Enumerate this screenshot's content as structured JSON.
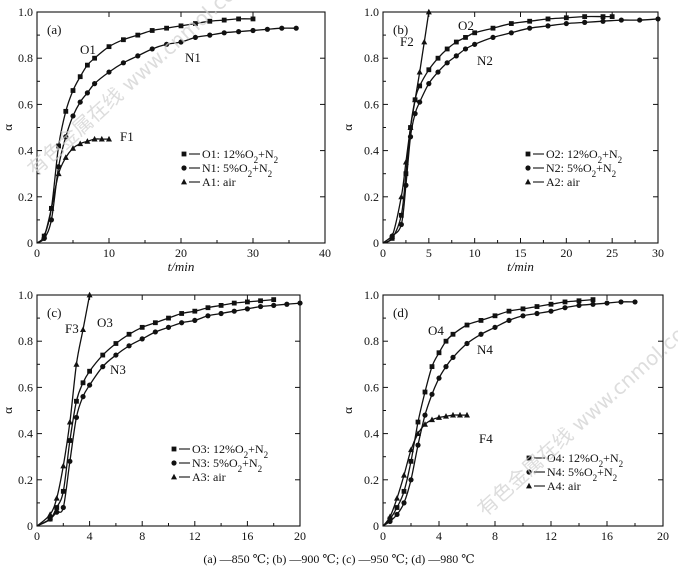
{
  "caption": "(a) —850 ℃; (b) —900 ℃; (c) —950 ℃; (d) —980 ℃",
  "watermark": "有色金属在线 www.cnmol.com",
  "chart_data": [
    {
      "type": "line",
      "panel_label": "(a)",
      "xlabel": "t/min",
      "ylabel": "α",
      "xlim": [
        0,
        40
      ],
      "ylim": [
        0,
        1.0
      ],
      "xticks": [
        0,
        10,
        20,
        30,
        40
      ],
      "yticks": [
        0,
        0.2,
        0.4,
        0.6,
        0.8,
        1.0
      ],
      "series": [
        {
          "name": "O1: 12%O2+N2",
          "legend_key": "O1",
          "tag": "O1",
          "marker": "square",
          "x": [
            0,
            1,
            2,
            3,
            4,
            5,
            6,
            7,
            8,
            10,
            12,
            14,
            16,
            18,
            20,
            22,
            24,
            26,
            28,
            30
          ],
          "y": [
            0,
            0.03,
            0.15,
            0.42,
            0.57,
            0.66,
            0.72,
            0.77,
            0.8,
            0.85,
            0.88,
            0.9,
            0.92,
            0.93,
            0.94,
            0.95,
            0.96,
            0.965,
            0.97,
            0.97
          ]
        },
        {
          "name": "N1: 5%O2+N2",
          "legend_key": "N1",
          "tag": "N1",
          "marker": "circle",
          "x": [
            0,
            1,
            2,
            3,
            4,
            5,
            6,
            7,
            8,
            10,
            12,
            14,
            16,
            18,
            20,
            22,
            24,
            26,
            28,
            30,
            32,
            34,
            36
          ],
          "y": [
            0,
            0.02,
            0.1,
            0.33,
            0.46,
            0.55,
            0.61,
            0.65,
            0.69,
            0.74,
            0.78,
            0.81,
            0.84,
            0.86,
            0.87,
            0.89,
            0.9,
            0.91,
            0.915,
            0.92,
            0.925,
            0.93,
            0.93
          ]
        },
        {
          "name": "A1: air",
          "legend_key": "A1",
          "tag": "F1",
          "marker": "triangle",
          "x": [
            0,
            1,
            2,
            3,
            4,
            5,
            6,
            7,
            8,
            9,
            10
          ],
          "y": [
            0,
            0.03,
            0.15,
            0.3,
            0.37,
            0.41,
            0.43,
            0.44,
            0.45,
            0.45,
            0.45
          ]
        }
      ],
      "legend": [
        {
          "key": "O1",
          "label": "O1: 12%O",
          "sub": "2",
          "rest": "+N",
          "sub2": "2"
        },
        {
          "key": "N1",
          "label": "N1: 5%O",
          "sub": "2",
          "rest": "+N",
          "sub2": "2"
        },
        {
          "key": "A1",
          "label": "A1: air",
          "sub": "",
          "rest": "",
          "sub2": ""
        }
      ]
    },
    {
      "type": "line",
      "panel_label": "(b)",
      "xlabel": "t/min",
      "ylabel": "α",
      "xlim": [
        0,
        30
      ],
      "ylim": [
        0,
        1.0
      ],
      "xticks": [
        0,
        5,
        10,
        15,
        20,
        25,
        30
      ],
      "yticks": [
        0,
        0.2,
        0.4,
        0.6,
        0.8,
        1.0
      ],
      "series": [
        {
          "name": "O2: 12%O2+N2",
          "legend_key": "O2",
          "tag": "O2",
          "marker": "square",
          "x": [
            0,
            1,
            2,
            2.5,
            3,
            3.5,
            4,
            5,
            6,
            7,
            8,
            9,
            10,
            12,
            14,
            16,
            18,
            20,
            22,
            24,
            25
          ],
          "y": [
            0,
            0.02,
            0.12,
            0.3,
            0.5,
            0.62,
            0.68,
            0.75,
            0.8,
            0.84,
            0.87,
            0.89,
            0.91,
            0.93,
            0.95,
            0.96,
            0.97,
            0.975,
            0.98,
            0.98,
            0.98
          ]
        },
        {
          "name": "N2: 5%O2+N2",
          "legend_key": "N2",
          "tag": "N2",
          "marker": "circle",
          "x": [
            0,
            1,
            2,
            2.5,
            3,
            3.5,
            4,
            5,
            6,
            7,
            8,
            9,
            10,
            12,
            14,
            16,
            18,
            20,
            22,
            24,
            26,
            28,
            30
          ],
          "y": [
            0,
            0.03,
            0.08,
            0.25,
            0.46,
            0.56,
            0.61,
            0.69,
            0.74,
            0.78,
            0.81,
            0.84,
            0.86,
            0.89,
            0.91,
            0.93,
            0.94,
            0.95,
            0.955,
            0.96,
            0.965,
            0.965,
            0.97
          ]
        },
        {
          "name": "A2: air",
          "legend_key": "A2",
          "tag": "F2",
          "marker": "triangle",
          "x": [
            0,
            1,
            2,
            2.5,
            3,
            3.5,
            4,
            4.5,
            5
          ],
          "y": [
            0,
            0.03,
            0.2,
            0.35,
            0.5,
            0.62,
            0.74,
            0.87,
            1.0
          ]
        }
      ],
      "legend": [
        {
          "key": "O2",
          "label": "O2: 12%O",
          "sub": "2",
          "rest": "+N",
          "sub2": "2"
        },
        {
          "key": "N2",
          "label": "N2: 5%O",
          "sub": "2",
          "rest": "+N",
          "sub2": "2"
        },
        {
          "key": "A2",
          "label": "A2: air",
          "sub": "",
          "rest": "",
          "sub2": ""
        }
      ]
    },
    {
      "type": "line",
      "panel_label": "(c)",
      "xlabel": "",
      "ylabel": "α",
      "xlim": [
        0,
        20
      ],
      "ylim": [
        0,
        1.0
      ],
      "xticks": [
        0,
        4,
        8,
        12,
        16,
        20
      ],
      "yticks": [
        0,
        0.2,
        0.4,
        0.6,
        0.8,
        1.0
      ],
      "series": [
        {
          "name": "O3: 12%O2+N2",
          "legend_key": "O3",
          "tag": "O3",
          "marker": "square",
          "x": [
            0,
            1,
            1.5,
            2,
            2.5,
            3,
            3.5,
            4,
            5,
            6,
            7,
            8,
            9,
            10,
            11,
            12,
            13,
            14,
            15,
            16,
            17,
            18
          ],
          "y": [
            0,
            0.03,
            0.08,
            0.15,
            0.37,
            0.54,
            0.62,
            0.67,
            0.74,
            0.79,
            0.83,
            0.86,
            0.88,
            0.9,
            0.92,
            0.93,
            0.945,
            0.955,
            0.965,
            0.97,
            0.975,
            0.98
          ]
        },
        {
          "name": "N3: 5%O2+N2",
          "legend_key": "N3",
          "tag": "N3",
          "marker": "circle",
          "x": [
            0,
            1,
            1.5,
            2,
            2.5,
            3,
            3.5,
            4,
            5,
            6,
            7,
            8,
            9,
            10,
            11,
            12,
            13,
            14,
            15,
            16,
            17,
            18,
            19,
            20
          ],
          "y": [
            0,
            0.03,
            0.06,
            0.08,
            0.28,
            0.47,
            0.56,
            0.61,
            0.69,
            0.74,
            0.78,
            0.81,
            0.84,
            0.86,
            0.88,
            0.89,
            0.91,
            0.92,
            0.93,
            0.94,
            0.95,
            0.955,
            0.96,
            0.965
          ]
        },
        {
          "name": "A3: air",
          "legend_key": "A3",
          "tag": "F3",
          "marker": "triangle",
          "x": [
            0,
            1,
            1.5,
            2,
            2.5,
            3,
            3.5,
            4
          ],
          "y": [
            0,
            0.05,
            0.12,
            0.26,
            0.45,
            0.7,
            0.85,
            1.0
          ]
        }
      ],
      "legend": [
        {
          "key": "O3",
          "label": "O3: 12%O",
          "sub": "2",
          "rest": "+N",
          "sub2": "2"
        },
        {
          "key": "N3",
          "label": "N3: 5%O",
          "sub": "2",
          "rest": "+N",
          "sub2": "2"
        },
        {
          "key": "A3",
          "label": "A3: air",
          "sub": "",
          "rest": "",
          "sub2": ""
        }
      ]
    },
    {
      "type": "line",
      "panel_label": "(d)",
      "xlabel": "",
      "ylabel": "α",
      "xlim": [
        0,
        20
      ],
      "ylim": [
        0,
        1.0
      ],
      "xticks": [
        0,
        4,
        8,
        12,
        16,
        20
      ],
      "yticks": [
        0,
        0.2,
        0.4,
        0.6,
        0.8,
        1.0
      ],
      "series": [
        {
          "name": "O4: 12%O2+N2",
          "legend_key": "O4",
          "tag": "O4",
          "marker": "square",
          "x": [
            0,
            0.5,
            1,
            1.5,
            2,
            2.5,
            3,
            3.5,
            4,
            4.5,
            5,
            6,
            7,
            8,
            9,
            10,
            11,
            12,
            13,
            14,
            15
          ],
          "y": [
            0,
            0.03,
            0.08,
            0.15,
            0.28,
            0.45,
            0.58,
            0.69,
            0.75,
            0.8,
            0.83,
            0.87,
            0.89,
            0.91,
            0.93,
            0.94,
            0.95,
            0.96,
            0.97,
            0.975,
            0.98
          ]
        },
        {
          "name": "N4: 5%O2+N2",
          "legend_key": "N4",
          "tag": "N4",
          "marker": "circle",
          "x": [
            0,
            0.5,
            1,
            1.5,
            2,
            2.5,
            3,
            3.5,
            4,
            4.5,
            5,
            6,
            7,
            8,
            9,
            10,
            11,
            12,
            13,
            14,
            15,
            16,
            17,
            18
          ],
          "y": [
            0,
            0.02,
            0.05,
            0.1,
            0.2,
            0.35,
            0.48,
            0.57,
            0.64,
            0.69,
            0.73,
            0.79,
            0.83,
            0.86,
            0.89,
            0.91,
            0.92,
            0.93,
            0.945,
            0.955,
            0.96,
            0.965,
            0.97,
            0.97
          ]
        },
        {
          "name": "A4: air",
          "legend_key": "A4",
          "tag": "F4",
          "marker": "triangle",
          "x": [
            0,
            0.5,
            1,
            1.5,
            2,
            2.5,
            3,
            3.5,
            4,
            4.5,
            5,
            5.5,
            6
          ],
          "y": [
            0,
            0.04,
            0.12,
            0.22,
            0.33,
            0.4,
            0.44,
            0.46,
            0.47,
            0.475,
            0.48,
            0.48,
            0.48
          ]
        }
      ],
      "legend": [
        {
          "key": "O4",
          "label": "O4: 12%O",
          "sub": "2",
          "rest": "+N",
          "sub2": "2"
        },
        {
          "key": "N4",
          "label": "N4: 5%O",
          "sub": "2",
          "rest": "+N",
          "sub2": "2"
        },
        {
          "key": "A4",
          "label": "A4: air",
          "sub": "",
          "rest": "",
          "sub2": ""
        }
      ]
    }
  ]
}
